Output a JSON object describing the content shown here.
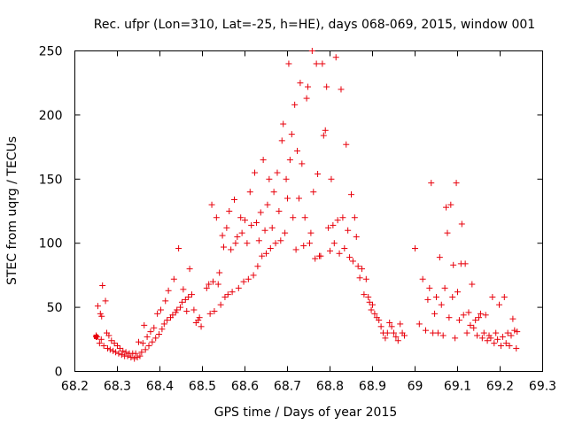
{
  "chart_data": {
    "type": "scatter",
    "title": "Rec. ufpr (Lon=310, Lat=-25, h=HE), days 068-069, 2015, window 001",
    "xlabel": "GPS time / Days of year 2015",
    "ylabel": "STEC from uqrg / TECUs",
    "xlim": [
      68.2,
      69.3
    ],
    "ylim": [
      0,
      250
    ],
    "x_ticks": [
      "68.2",
      "68.3",
      "68.4",
      "68.5",
      "68.6",
      "68.7",
      "68.8",
      "68.9",
      "69",
      "69.1",
      "69.2",
      "69.3"
    ],
    "y_ticks": [
      "0",
      "50",
      "100",
      "150",
      "200",
      "250"
    ],
    "marker": "plus",
    "color": "#e8000b",
    "series": [
      {
        "name": "STEC",
        "points": [
          [
            68.25,
            27
          ],
          [
            68.25,
            28
          ],
          [
            68.252,
            27
          ],
          [
            68.254,
            51
          ],
          [
            68.258,
            22
          ],
          [
            68.26,
            45
          ],
          [
            68.262,
            25
          ],
          [
            68.263,
            43
          ],
          [
            68.265,
            67
          ],
          [
            68.268,
            20
          ],
          [
            68.272,
            55
          ],
          [
            68.275,
            30
          ],
          [
            68.277,
            18
          ],
          [
            68.28,
            28
          ],
          [
            68.283,
            17
          ],
          [
            68.286,
            24
          ],
          [
            68.29,
            16
          ],
          [
            68.293,
            22
          ],
          [
            68.296,
            15
          ],
          [
            68.3,
            20
          ],
          [
            68.303,
            14
          ],
          [
            68.306,
            18
          ],
          [
            68.31,
            13
          ],
          [
            68.313,
            16
          ],
          [
            68.317,
            12
          ],
          [
            68.32,
            15
          ],
          [
            68.324,
            12
          ],
          [
            68.328,
            14
          ],
          [
            68.332,
            11
          ],
          [
            68.336,
            14
          ],
          [
            68.34,
            10
          ],
          [
            68.343,
            14
          ],
          [
            68.347,
            11
          ],
          [
            68.35,
            23
          ],
          [
            68.353,
            12
          ],
          [
            68.357,
            15
          ],
          [
            68.36,
            22
          ],
          [
            68.363,
            36
          ],
          [
            68.366,
            17
          ],
          [
            68.37,
            27
          ],
          [
            68.374,
            20
          ],
          [
            68.378,
            31
          ],
          [
            68.382,
            23
          ],
          [
            68.386,
            34
          ],
          [
            68.39,
            26
          ],
          [
            68.394,
            45
          ],
          [
            68.398,
            29
          ],
          [
            68.402,
            48
          ],
          [
            68.405,
            33
          ],
          [
            68.41,
            37
          ],
          [
            68.413,
            55
          ],
          [
            68.417,
            40
          ],
          [
            68.42,
            63
          ],
          [
            68.425,
            42
          ],
          [
            68.43,
            44
          ],
          [
            68.433,
            72
          ],
          [
            68.437,
            46
          ],
          [
            68.44,
            48
          ],
          [
            68.444,
            96
          ],
          [
            68.448,
            50
          ],
          [
            68.452,
            54
          ],
          [
            68.455,
            64
          ],
          [
            68.46,
            56
          ],
          [
            68.463,
            47
          ],
          [
            68.467,
            58
          ],
          [
            68.47,
            80
          ],
          [
            68.475,
            60
          ],
          [
            68.48,
            48
          ],
          [
            68.485,
            38
          ],
          [
            68.49,
            40
          ],
          [
            68.493,
            42
          ],
          [
            68.497,
            35
          ],
          [
            68.51,
            65
          ],
          [
            68.515,
            68
          ],
          [
            68.518,
            45
          ],
          [
            68.522,
            130
          ],
          [
            68.525,
            70
          ],
          [
            68.528,
            47
          ],
          [
            68.533,
            120
          ],
          [
            68.537,
            68
          ],
          [
            68.54,
            77
          ],
          [
            68.543,
            52
          ],
          [
            68.547,
            106
          ],
          [
            68.55,
            97
          ],
          [
            68.553,
            58
          ],
          [
            68.557,
            112
          ],
          [
            68.56,
            60
          ],
          [
            68.563,
            125
          ],
          [
            68.567,
            95
          ],
          [
            68.57,
            62
          ],
          [
            68.575,
            134
          ],
          [
            68.578,
            100
          ],
          [
            68.582,
            105
          ],
          [
            68.585,
            65
          ],
          [
            68.59,
            120
          ],
          [
            68.593,
            108
          ],
          [
            68.597,
            70
          ],
          [
            68.6,
            118
          ],
          [
            68.605,
            100
          ],
          [
            68.608,
            72
          ],
          [
            68.612,
            140
          ],
          [
            68.615,
            114
          ],
          [
            68.62,
            75
          ],
          [
            68.623,
            155
          ],
          [
            68.627,
            116
          ],
          [
            68.63,
            82
          ],
          [
            68.633,
            102
          ],
          [
            68.637,
            124
          ],
          [
            68.64,
            90
          ],
          [
            68.643,
            165
          ],
          [
            68.647,
            110
          ],
          [
            68.65,
            92
          ],
          [
            68.653,
            130
          ],
          [
            68.657,
            150
          ],
          [
            68.66,
            96
          ],
          [
            68.664,
            112
          ],
          [
            68.668,
            140
          ],
          [
            68.672,
            100
          ],
          [
            68.676,
            155
          ],
          [
            68.68,
            125
          ],
          [
            68.684,
            102
          ],
          [
            68.687,
            180
          ],
          [
            68.69,
            193
          ],
          [
            68.694,
            108
          ],
          [
            68.697,
            150
          ],
          [
            68.7,
            135
          ],
          [
            68.703,
            240
          ],
          [
            68.706,
            165
          ],
          [
            68.71,
            185
          ],
          [
            68.713,
            120
          ],
          [
            68.717,
            208
          ],
          [
            68.72,
            95
          ],
          [
            68.723,
            172
          ],
          [
            68.727,
            135
          ],
          [
            68.73,
            225
          ],
          [
            68.734,
            162
          ],
          [
            68.738,
            98
          ],
          [
            68.741,
            120
          ],
          [
            68.745,
            213
          ],
          [
            68.748,
            222
          ],
          [
            68.752,
            100
          ],
          [
            68.755,
            108
          ],
          [
            68.758,
            250
          ],
          [
            68.761,
            140
          ],
          [
            68.765,
            88
          ],
          [
            68.768,
            240
          ],
          [
            68.771,
            154
          ],
          [
            68.775,
            90
          ],
          [
            68.778,
            90
          ],
          [
            68.782,
            240
          ],
          [
            68.785,
            184
          ],
          [
            68.789,
            188
          ],
          [
            68.792,
            222
          ],
          [
            68.796,
            112
          ],
          [
            68.8,
            94
          ],
          [
            68.803,
            150
          ],
          [
            68.807,
            114
          ],
          [
            68.81,
            100
          ],
          [
            68.814,
            245
          ],
          [
            68.818,
            118
          ],
          [
            68.822,
            92
          ],
          [
            68.826,
            220
          ],
          [
            68.83,
            120
          ],
          [
            68.834,
            96
          ],
          [
            68.838,
            177
          ],
          [
            68.842,
            110
          ],
          [
            68.846,
            89
          ],
          [
            68.85,
            138
          ],
          [
            68.854,
            86
          ],
          [
            68.858,
            120
          ],
          [
            68.862,
            105
          ],
          [
            68.866,
            82
          ],
          [
            68.87,
            73
          ],
          [
            68.875,
            80
          ],
          [
            68.88,
            60
          ],
          [
            68.885,
            72
          ],
          [
            68.89,
            58
          ],
          [
            68.893,
            54
          ],
          [
            68.897,
            48
          ],
          [
            68.9,
            52
          ],
          [
            68.905,
            45
          ],
          [
            68.91,
            42
          ],
          [
            68.915,
            40
          ],
          [
            68.92,
            35
          ],
          [
            68.925,
            30
          ],
          [
            68.93,
            26
          ],
          [
            68.935,
            30
          ],
          [
            68.94,
            38
          ],
          [
            68.945,
            35
          ],
          [
            68.95,
            30
          ],
          [
            68.955,
            27
          ],
          [
            68.96,
            24
          ],
          [
            68.965,
            37
          ],
          [
            68.97,
            30
          ],
          [
            68.975,
            28
          ],
          [
            69.0,
            96
          ],
          [
            69.01,
            37
          ],
          [
            69.018,
            72
          ],
          [
            69.025,
            32
          ],
          [
            69.03,
            56
          ],
          [
            69.034,
            65
          ],
          [
            69.038,
            147
          ],
          [
            69.042,
            30
          ],
          [
            69.046,
            45
          ],
          [
            69.05,
            58
          ],
          [
            69.054,
            30
          ],
          [
            69.058,
            89
          ],
          [
            69.062,
            52
          ],
          [
            69.066,
            28
          ],
          [
            69.07,
            65
          ],
          [
            69.073,
            128
          ],
          [
            69.076,
            108
          ],
          [
            69.08,
            42
          ],
          [
            69.084,
            130
          ],
          [
            69.088,
            58
          ],
          [
            69.09,
            83
          ],
          [
            69.094,
            26
          ],
          [
            69.097,
            147
          ],
          [
            69.1,
            62
          ],
          [
            69.104,
            40
          ],
          [
            69.108,
            84
          ],
          [
            69.11,
            115
          ],
          [
            69.114,
            44
          ],
          [
            69.118,
            84
          ],
          [
            69.122,
            30
          ],
          [
            69.126,
            46
          ],
          [
            69.13,
            36
          ],
          [
            69.134,
            68
          ],
          [
            69.138,
            34
          ],
          [
            69.142,
            40
          ],
          [
            69.146,
            28
          ],
          [
            69.15,
            42
          ],
          [
            69.154,
            45
          ],
          [
            69.158,
            26
          ],
          [
            69.162,
            30
          ],
          [
            69.166,
            44
          ],
          [
            69.17,
            24
          ],
          [
            69.174,
            28
          ],
          [
            69.178,
            26
          ],
          [
            69.182,
            58
          ],
          [
            69.186,
            22
          ],
          [
            69.19,
            30
          ],
          [
            69.194,
            25
          ],
          [
            69.198,
            52
          ],
          [
            69.202,
            20
          ],
          [
            69.206,
            27
          ],
          [
            69.21,
            58
          ],
          [
            69.214,
            22
          ],
          [
            69.218,
            30
          ],
          [
            69.222,
            20
          ],
          [
            69.226,
            28
          ],
          [
            69.23,
            41
          ],
          [
            69.234,
            32
          ],
          [
            69.238,
            18
          ],
          [
            69.24,
            31
          ]
        ]
      }
    ]
  }
}
